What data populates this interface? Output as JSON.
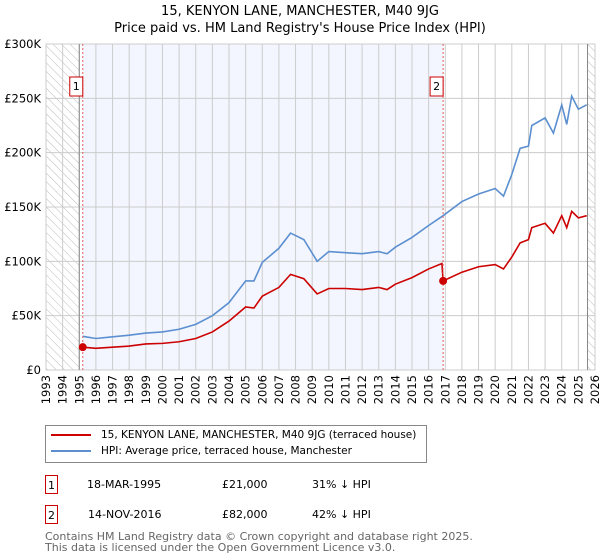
{
  "chart_data": {
    "type": "line",
    "title": "15, KENYON LANE, MANCHESTER, M40 9JG",
    "subtitle": "Price paid vs. HM Land Registry's House Price Index (HPI)",
    "xlim": [
      1993,
      2026
    ],
    "ylim": [
      0,
      300000
    ],
    "x_ticks": [
      "1993",
      "1994",
      "1995",
      "1996",
      "1997",
      "1998",
      "1999",
      "2000",
      "2001",
      "2002",
      "2003",
      "2004",
      "2005",
      "2006",
      "2007",
      "2008",
      "2009",
      "2010",
      "2011",
      "2012",
      "2013",
      "2014",
      "2015",
      "2016",
      "2017",
      "2018",
      "2019",
      "2020",
      "2021",
      "2022",
      "2023",
      "2024",
      "2025",
      "2026"
    ],
    "y_ticks": [
      {
        "v": 0,
        "label": "£0"
      },
      {
        "v": 50000,
        "label": "£50K"
      },
      {
        "v": 100000,
        "label": "£100K"
      },
      {
        "v": 150000,
        "label": "£150K"
      },
      {
        "v": 200000,
        "label": "£200K"
      },
      {
        "v": 250000,
        "label": "£250K"
      },
      {
        "v": 300000,
        "label": "£300K"
      }
    ],
    "grid": true,
    "series": [
      {
        "name": "15, KENYON LANE, MANCHESTER, M40 9JG (terraced house)",
        "color": "#cc0000",
        "x": [
          1995.2,
          1996,
          1997,
          1998,
          1999,
          2000,
          2001,
          2002,
          2003,
          2004,
          2005,
          2005.5,
          2006,
          2007,
          2007.7,
          2008.5,
          2009.3,
          2010,
          2011,
          2012,
          2013,
          2013.5,
          2014,
          2015,
          2016,
          2016.8,
          2016.87,
          2018,
          2019,
          2020,
          2020.5,
          2021,
          2021.5,
          2022,
          2022.2,
          2023,
          2023.5,
          2024,
          2024.3,
          2024.6,
          2025,
          2025.5
        ],
        "y": [
          21000,
          20000,
          21000,
          22000,
          24000,
          24500,
          26000,
          29000,
          35000,
          45000,
          58000,
          57000,
          68000,
          76000,
          88000,
          84000,
          70000,
          75000,
          75000,
          74000,
          76000,
          74000,
          79000,
          85000,
          93000,
          98000,
          82000,
          90000,
          95000,
          97000,
          93000,
          104000,
          117000,
          120000,
          131000,
          135000,
          126000,
          142000,
          131000,
          146000,
          140000,
          142000
        ]
      },
      {
        "name": "HPI: Average price, terraced house, Manchester",
        "color": "#5b8fd0",
        "x": [
          1995.2,
          1996,
          1997,
          1998,
          1999,
          2000,
          2001,
          2002,
          2003,
          2004,
          2005,
          2005.5,
          2006,
          2007,
          2007.7,
          2008.5,
          2009.3,
          2010,
          2011,
          2012,
          2013,
          2013.5,
          2014,
          2015,
          2016,
          2016.87,
          2018,
          2019,
          2020,
          2020.5,
          2021,
          2021.5,
          2022,
          2022.2,
          2023,
          2023.5,
          2024,
          2024.3,
          2024.6,
          2025,
          2025.5
        ],
        "y": [
          31000,
          29000,
          30500,
          32000,
          34000,
          35000,
          37500,
          42000,
          50000,
          62000,
          82000,
          82000,
          99000,
          112000,
          126000,
          120000,
          100000,
          109000,
          108000,
          107000,
          109000,
          107000,
          113000,
          122000,
          133000,
          142000,
          155000,
          162000,
          167000,
          160000,
          180000,
          204000,
          206000,
          225000,
          232000,
          218000,
          244000,
          226000,
          252000,
          240000,
          244000
        ]
      }
    ],
    "sales": [
      {
        "label": "1",
        "x": 1995.21,
        "price": 21000
      },
      {
        "label": "2",
        "x": 2016.87,
        "price": 82000
      }
    ]
  },
  "legend": {
    "items": [
      "15, KENYON LANE, MANCHESTER, M40 9JG (terraced house)",
      "HPI: Average price, terraced house, Manchester"
    ]
  },
  "table": [
    {
      "n": "1",
      "date": "18-MAR-1995",
      "price": "£21,000",
      "hpi": "31% ↓ HPI"
    },
    {
      "n": "2",
      "date": "14-NOV-2016",
      "price": "£82,000",
      "hpi": "42% ↓ HPI"
    }
  ],
  "footer": [
    "Contains HM Land Registry data © Crown copyright and database right 2025.",
    "This data is licensed under the Open Government Licence v3.0."
  ]
}
